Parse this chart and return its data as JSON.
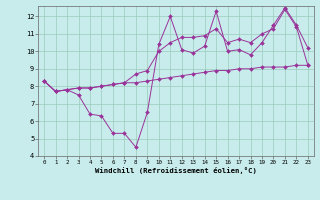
{
  "xlabel": "Windchill (Refroidissement éolien,°C)",
  "background_color": "#c8ecec",
  "grid_color": "#aaddcc",
  "line_color": "#993399",
  "xlim": [
    -0.5,
    23.5
  ],
  "ylim": [
    4,
    12.6
  ],
  "xticks": [
    0,
    1,
    2,
    3,
    4,
    5,
    6,
    7,
    8,
    9,
    10,
    11,
    12,
    13,
    14,
    15,
    16,
    17,
    18,
    19,
    20,
    21,
    22,
    23
  ],
  "yticks": [
    4,
    5,
    6,
    7,
    8,
    9,
    10,
    11,
    12
  ],
  "series": [
    [
      8.3,
      7.7,
      7.8,
      7.5,
      6.4,
      6.3,
      5.3,
      5.3,
      4.5,
      6.5,
      10.4,
      12.0,
      10.1,
      9.9,
      10.3,
      12.3,
      10.0,
      10.1,
      9.8,
      10.5,
      11.5,
      12.5,
      11.5,
      10.2
    ],
    [
      8.3,
      7.7,
      7.8,
      7.9,
      7.9,
      8.0,
      8.1,
      8.2,
      8.7,
      8.9,
      10.0,
      10.5,
      10.8,
      10.8,
      10.9,
      11.3,
      10.5,
      10.7,
      10.5,
      11.0,
      11.3,
      12.4,
      11.4,
      9.2
    ],
    [
      8.3,
      7.7,
      7.8,
      7.9,
      7.9,
      8.0,
      8.1,
      8.2,
      8.2,
      8.3,
      8.4,
      8.5,
      8.6,
      8.7,
      8.8,
      8.9,
      8.9,
      9.0,
      9.0,
      9.1,
      9.1,
      9.1,
      9.2,
      9.2
    ]
  ]
}
